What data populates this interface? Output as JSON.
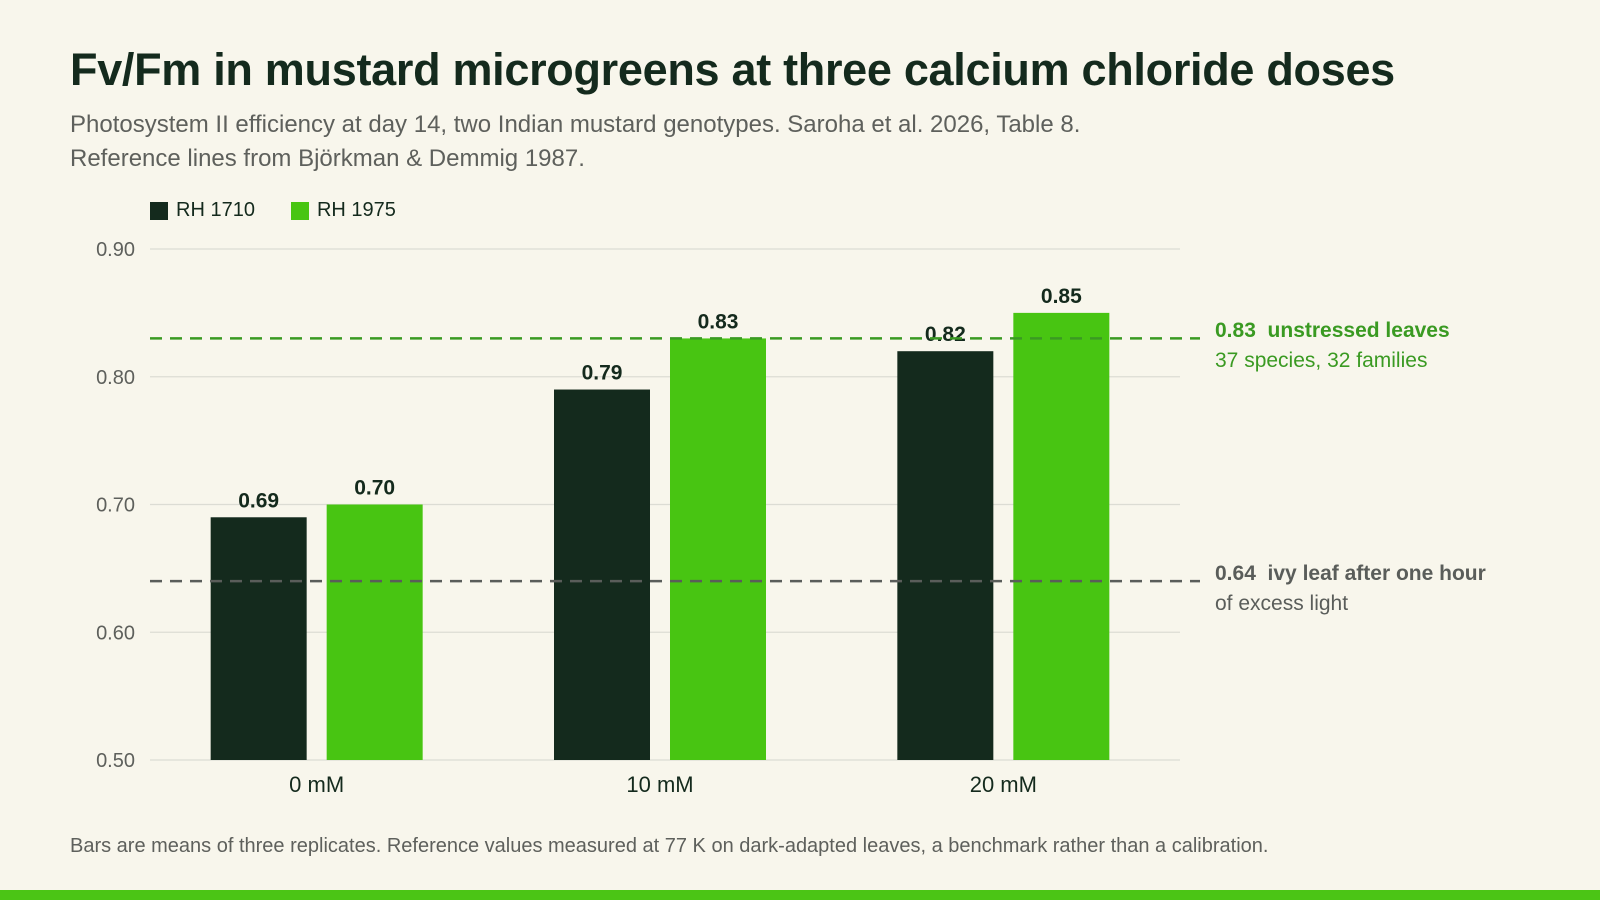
{
  "header": {
    "title": "Fv/Fm in mustard microgreens at three calcium chloride doses",
    "subtitle_line1": "Photosystem II efficiency at day 14, two Indian mustard genotypes. Saroha et al. 2026, Table 8.",
    "subtitle_line2": "Reference lines from Björkman & Demmig 1987."
  },
  "footnote": "Bars are means of three replicates. Reference values measured at 77 K on dark-adapted leaves, a benchmark rather than a calibration.",
  "colors": {
    "series_dark": "#142a1d",
    "series_green": "#48c512",
    "ref_green": "#3a9a22",
    "ref_gray": "#5a5d5a",
    "grid": "#dcdcd4",
    "axis_text": "#5e605c",
    "bottom_bar": "#4bc515"
  },
  "reference_lines": [
    {
      "value": 0.83,
      "value_label": "0.83",
      "name": "unstressed leaves",
      "detail": "37 species, 32 families",
      "color": "#3a9a22"
    },
    {
      "value": 0.64,
      "value_label": "0.64",
      "name": "ivy leaf after one hour",
      "detail": "of excess light",
      "color": "#5a5d5a"
    }
  ],
  "chart_data": {
    "type": "bar",
    "title": "Fv/Fm in mustard microgreens at three calcium chloride doses",
    "categories": [
      "0 mM",
      "10 mM",
      "20 mM"
    ],
    "series": [
      {
        "name": "RH 1710",
        "values": [
          0.69,
          0.79,
          0.82
        ],
        "labels": [
          "0.69",
          "0.79",
          "0.82"
        ],
        "color": "#142a1d"
      },
      {
        "name": "RH 1975",
        "values": [
          0.7,
          0.83,
          0.85
        ],
        "labels": [
          "0.70",
          "0.83",
          "0.85"
        ],
        "color": "#48c512"
      }
    ],
    "ylim": [
      0.5,
      0.9
    ],
    "yticks": [
      0.5,
      0.6,
      0.7,
      0.8,
      0.9
    ],
    "ytick_labels": [
      "0.50",
      "0.60",
      "0.70",
      "0.80",
      "0.90"
    ],
    "grid": true,
    "legend": "top-left"
  }
}
